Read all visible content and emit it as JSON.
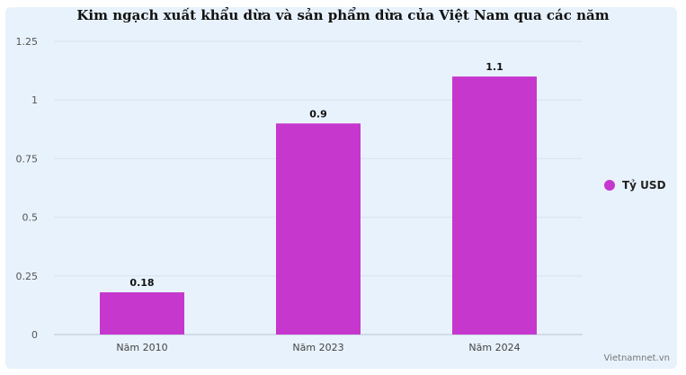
{
  "chart_data": {
    "type": "bar",
    "title": "Kim ngạch xuất khẩu dừa và sản phẩm dừa của Việt Nam qua các năm",
    "categories": [
      "Năm 2010",
      "Năm 2023",
      "Năm 2024"
    ],
    "series": [
      {
        "name": "Tỷ USD",
        "values": [
          0.18,
          0.9,
          1.1
        ],
        "color": "#c637ce"
      }
    ],
    "ylim": [
      0,
      1.25
    ],
    "yticks": [
      0,
      0.25,
      0.5,
      0.75,
      1,
      1.25
    ],
    "ytick_labels": [
      "0",
      "0.25",
      "0.5",
      "0.75",
      "1",
      "1.25"
    ],
    "data_labels": [
      "0.18",
      "0.9",
      "1.1"
    ],
    "grid": true,
    "legend_position": "right"
  },
  "source": "Vietnamnet.vn"
}
